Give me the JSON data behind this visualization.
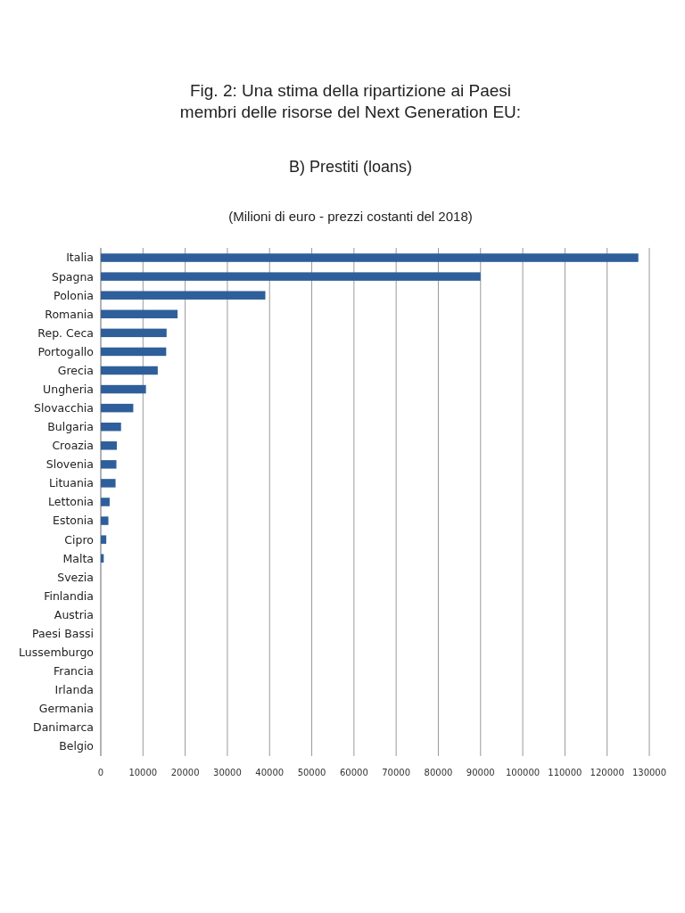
{
  "chart_data": {
    "type": "bar",
    "orientation": "horizontal",
    "title": "Fig. 2: Una stima della ripartizione ai Paesi membri delle risorse del Next Generation EU:",
    "subtitle": "B) Prestiti (loans)",
    "annotations": [
      "(Milioni di euro - prezzi costanti del 2018)"
    ],
    "categories": [
      "Italia",
      "Spagna",
      "Polonia",
      "Romania",
      "Rep. Ceca",
      "Portogallo",
      "Grecia",
      "Ungheria",
      "Slovacchia",
      "Bulgaria",
      "Croazia",
      "Slovenia",
      "Lituania",
      "Lettonia",
      "Estonia",
      "Cipro",
      "Malta",
      "Svezia",
      "Finlandia",
      "Austria",
      "Paesi Bassi",
      "Lussemburgo",
      "Francia",
      "Irlanda",
      "Germania",
      "Danimarca",
      "Belgio"
    ],
    "values": [
      127400,
      90000,
      39000,
      18200,
      15600,
      15500,
      13500,
      10700,
      7700,
      4800,
      3800,
      3700,
      3500,
      2100,
      1800,
      1300,
      700,
      0,
      0,
      0,
      0,
      0,
      0,
      0,
      0,
      0,
      0
    ],
    "color": "#2e5f9a",
    "xlim": [
      0,
      130000
    ],
    "xticks": [
      0,
      10000,
      20000,
      30000,
      40000,
      50000,
      60000,
      70000,
      80000,
      90000,
      100000,
      110000,
      120000,
      130000
    ],
    "grid": "x"
  }
}
